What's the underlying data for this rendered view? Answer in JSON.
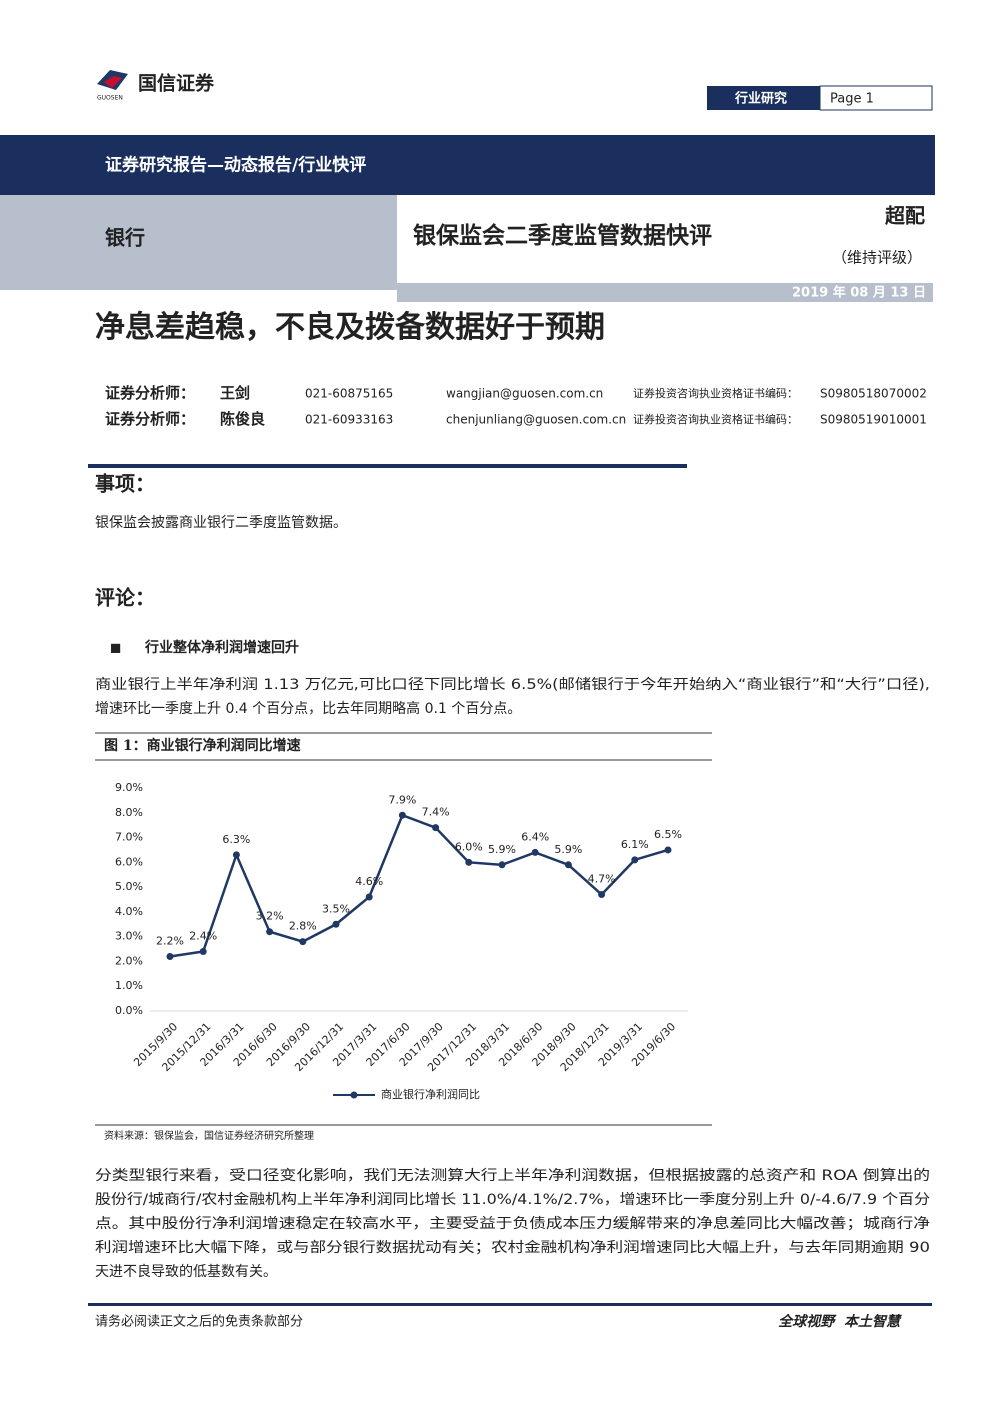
{
  "header": {
    "logo_text": "国信证券",
    "logo_sub": "GUOSEN",
    "section": "行业研究",
    "page": "Page 1"
  },
  "banner": {
    "report_type": "证券研究报告—动态报告/行业快评",
    "industry": "银行",
    "report_title": "银保监会二季度监管数据快评",
    "rating": "超配",
    "rating_note": "（维持评级）",
    "date": "2019 年 08 月 13 日"
  },
  "headline": "净息差趋稳，不良及拨备数据好于预期",
  "analysts": [
    {
      "label": "证券分析师：",
      "name": "王剑",
      "phone": "021-60875165",
      "email": "wangjian@guosen.com.cn",
      "cert_label": "证券投资咨询执业资格证书编码：",
      "cert": "S0980518070002"
    },
    {
      "label": "证券分析师：",
      "name": "陈俊良",
      "phone": "021-60933163",
      "email": "chenjunliang@guosen.com.cn",
      "cert_label": "证券投资咨询执业资格证书编码：",
      "cert": "S0980519010001"
    }
  ],
  "event": {
    "heading": "事项：",
    "text": "银保监会披露商业银行二季度监管数据。"
  },
  "comment": {
    "heading": "评论：",
    "bullet": "■",
    "subheading": "行业整体净利润增速回升",
    "paragraph1": [
      "商业银行上半年净利润 1.13 万亿元,可比口径下同比增长 6.5%(邮储银行于今年开始纳入“商业银行”和“大行”口径),",
      "增速环比一季度上升 0.4 个百分点，比去年同期略高 0.1 个百分点。"
    ],
    "paragraph2": [
      "分类型银行来看，受口径变化影响，我们无法测算大行上半年净利润数据，但根据披露的总资产和 ROA 倒算出的",
      "股份行/城商行/农村金融机构上半年净利润同比增长 11.0%/4.1%/2.7%，增速环比一季度分别上升 0/-4.6/7.9 个百分",
      "点。其中股份行净利润增速稳定在较高水平，主要受益于负债成本压力缓解带来的净息差同比大幅改善；城商行净",
      "利润增速环比大幅下降，或与部分银行数据扰动有关；农村金融机构净利润增速同比大幅上升，与去年同期逾期 90",
      "天进不良导致的低基数有关。"
    ]
  },
  "chart_data": {
    "type": "line",
    "title": "图 1：商业银行净利润同比增速",
    "source": "资料来源：银保监会，国信证券经济研究所整理",
    "categories": [
      "2015/9/30",
      "2015/12/31",
      "2016/3/31",
      "2016/6/30",
      "2016/9/30",
      "2016/12/31",
      "2017/3/31",
      "2017/6/30",
      "2017/9/30",
      "2017/12/31",
      "2018/3/31",
      "2018/6/30",
      "2018/9/30",
      "2018/12/31",
      "2019/3/31",
      "2019/6/30"
    ],
    "series": [
      {
        "name": "商业银行净利润同比",
        "color": "#1f3864",
        "values": [
          2.2,
          2.4,
          6.3,
          3.2,
          2.8,
          3.5,
          4.6,
          7.9,
          7.4,
          6.0,
          5.9,
          6.4,
          5.9,
          4.7,
          6.1,
          6.5
        ],
        "value_labels": [
          "2.2%",
          "2.4%",
          "6.3%",
          "3.2%",
          "2.8%",
          "3.5%",
          "4.6%",
          "7.9%",
          "7.4%",
          "6.0%",
          "5.9%",
          "6.4%",
          "5.9%",
          "4.7%",
          "6.1%",
          "6.5%"
        ]
      }
    ],
    "ylim": [
      0,
      9
    ],
    "yticks": [
      {
        "value": 0,
        "label": "0.0%"
      },
      {
        "value": 1,
        "label": "1.0%"
      },
      {
        "value": 2,
        "label": "2.0%"
      },
      {
        "value": 3,
        "label": "3.0%"
      },
      {
        "value": 4,
        "label": "4.0%"
      },
      {
        "value": 5,
        "label": "5.0%"
      },
      {
        "value": 6,
        "label": "6.0%"
      },
      {
        "value": 7,
        "label": "7.0%"
      },
      {
        "value": 8,
        "label": "8.0%"
      },
      {
        "value": 9,
        "label": "9.0%"
      }
    ],
    "legend": "bottom"
  },
  "footer": {
    "disclaimer": "请务必阅读正文之后的免责条款部分",
    "slogan": "全球视野  本土智慧"
  }
}
